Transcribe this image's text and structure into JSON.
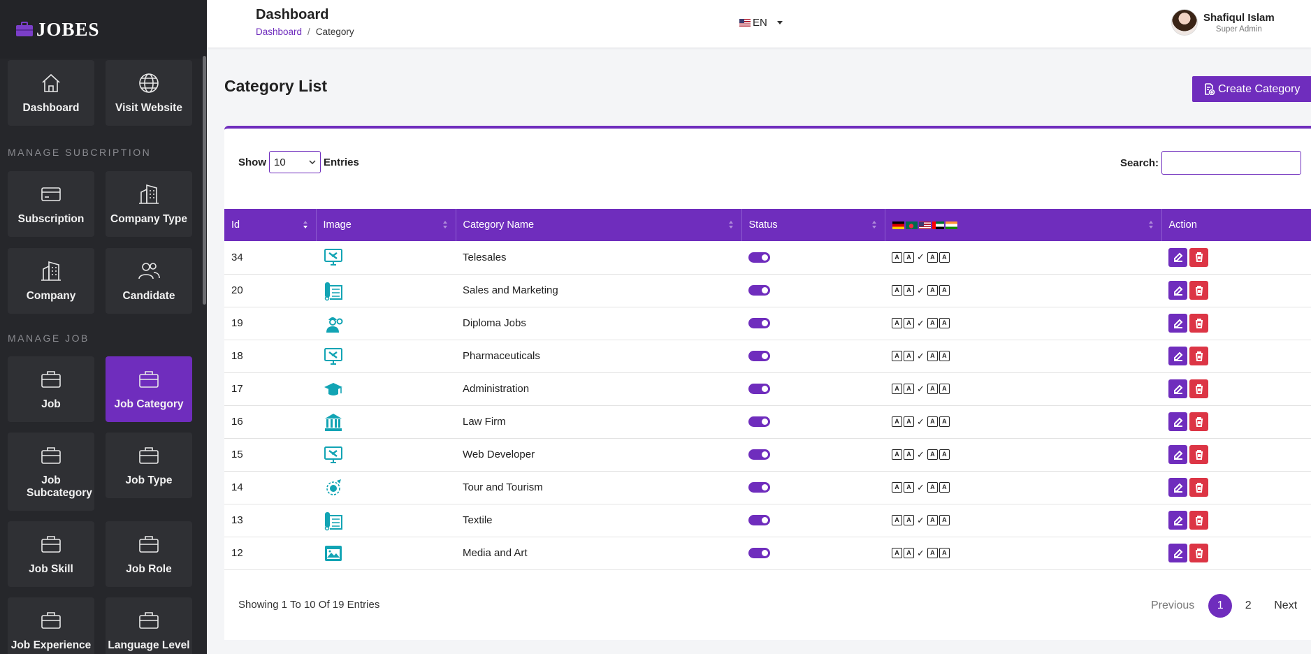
{
  "brand": {
    "logo_text": "JOBES"
  },
  "sidebar": {
    "tiles_top": [
      {
        "label": "Dashboard",
        "icon": "home-icon"
      },
      {
        "label": "Visit Website",
        "icon": "globe-icon"
      }
    ],
    "section_subscription": "MANAGE SUBCRIPTION",
    "tiles_subscription": [
      {
        "label": "Subscription",
        "icon": "credit-card-icon"
      },
      {
        "label": "Company Type",
        "icon": "building-icon"
      },
      {
        "label": "Company",
        "icon": "building-icon"
      },
      {
        "label": "Candidate",
        "icon": "users-icon"
      }
    ],
    "section_job": "MANAGE JOB",
    "tiles_job": [
      {
        "label": "Job",
        "icon": "briefcase-icon"
      },
      {
        "label": "Job Category",
        "icon": "briefcase-icon",
        "active": true
      },
      {
        "label": "Job Subcategory",
        "icon": "briefcase-icon"
      },
      {
        "label": "Job Type",
        "icon": "briefcase-icon"
      },
      {
        "label": "Job Skill",
        "icon": "briefcase-icon"
      },
      {
        "label": "Job Role",
        "icon": "briefcase-icon"
      },
      {
        "label": "Job Experience",
        "icon": "briefcase-icon"
      },
      {
        "label": "Language Level",
        "icon": "briefcase-icon"
      }
    ]
  },
  "header": {
    "title": "Dashboard",
    "breadcrumb": {
      "home": "Dashboard",
      "sep": "/",
      "current": "Category"
    },
    "language": "EN",
    "user": {
      "name": "Shafiqul Islam",
      "role": "Super Admin"
    }
  },
  "main": {
    "title": "Category List",
    "create_label": "Create Category",
    "show_label": "Show",
    "entries_value": "10",
    "entries_label": "Entries",
    "search_label": "Search:",
    "search_value": "",
    "columns": [
      "Id",
      "Image",
      "Category Name",
      "Status",
      "",
      "Action"
    ],
    "rows": [
      {
        "id": "34",
        "name": "Telesales",
        "icon": "computer-tools-icon"
      },
      {
        "id": "20",
        "name": "Sales and Marketing",
        "icon": "textile-roll-icon"
      },
      {
        "id": "19",
        "name": "Diploma Jobs",
        "icon": "engineer-icon"
      },
      {
        "id": "18",
        "name": "Pharmaceuticals",
        "icon": "computer-tools-icon"
      },
      {
        "id": "17",
        "name": "Administration",
        "icon": "graduation-cap-icon"
      },
      {
        "id": "16",
        "name": "Law Firm",
        "icon": "courthouse-icon"
      },
      {
        "id": "15",
        "name": "Web Developer",
        "icon": "computer-tools-icon"
      },
      {
        "id": "14",
        "name": "Tour and Tourism",
        "icon": "globe-plane-icon"
      },
      {
        "id": "13",
        "name": "Textile",
        "icon": "textile-roll-icon"
      },
      {
        "id": "12",
        "name": "Media and Art",
        "icon": "media-image-icon"
      }
    ],
    "info_text": "Showing 1 To 10 Of 19 Entries",
    "pagination": {
      "prev": "Previous",
      "pages": [
        "1",
        "2"
      ],
      "current": "1",
      "next": "Next"
    }
  },
  "colors": {
    "accent": "#6f2dbd",
    "danger": "#dc3545",
    "icon_teal": "#12a4b4",
    "sidebar_bg": "#26272b"
  }
}
